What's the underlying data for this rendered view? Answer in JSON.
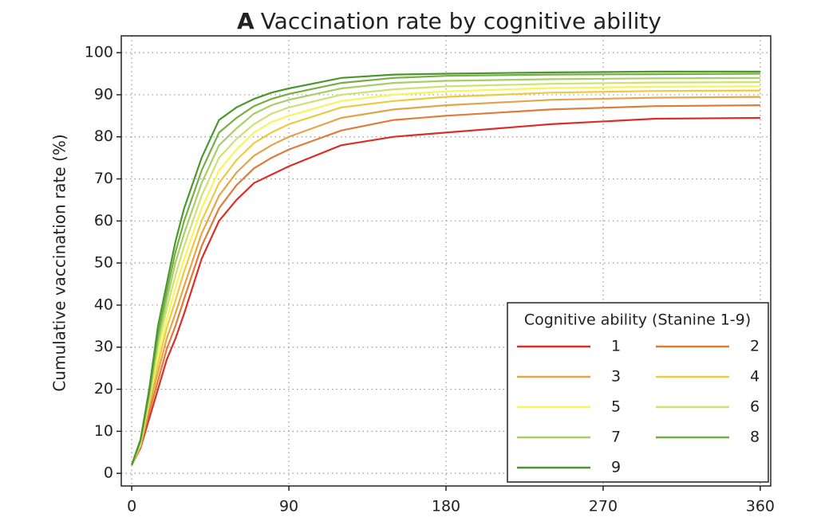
{
  "chart_data": {
    "type": "line",
    "panel_label": "A",
    "title": "Vaccination rate by cognitive ability",
    "y_label": "Cumulative vaccination rate (%)",
    "legend_title": "Cognitive ability (Stanine 1-9)",
    "legend": "bottom right",
    "grid": true,
    "x": [
      0,
      5,
      10,
      15,
      20,
      25,
      30,
      40,
      50,
      60,
      70,
      80,
      90,
      120,
      150,
      180,
      240,
      300,
      360
    ],
    "xlim": [
      -6,
      366
    ],
    "xticks": [
      0,
      90,
      180,
      270,
      360
    ],
    "ylim": [
      -3,
      104
    ],
    "yticks": [
      0,
      10,
      20,
      30,
      40,
      50,
      60,
      70,
      80,
      90,
      100
    ],
    "series": [
      {
        "name": "1",
        "color": "#d7302a",
        "values": [
          2,
          6,
          13,
          20,
          27,
          32,
          38,
          51,
          60,
          65,
          69,
          71,
          73,
          78,
          80,
          81,
          83,
          84.3,
          84.5
        ]
      },
      {
        "name": "2",
        "color": "#e07b39",
        "values": [
          2,
          6.3,
          14.5,
          22,
          29.5,
          35,
          41.5,
          54,
          63,
          68.5,
          72.5,
          75,
          77,
          81.5,
          84,
          85,
          86.5,
          87.3,
          87.5
        ]
      },
      {
        "name": "3",
        "color": "#e4a54a",
        "values": [
          2,
          6.5,
          16,
          24,
          32,
          38,
          44.5,
          57,
          66,
          71.5,
          75.5,
          78,
          80,
          84.5,
          86.5,
          87.5,
          88.8,
          89.3,
          89.5
        ]
      },
      {
        "name": "4",
        "color": "#efc940",
        "values": [
          2,
          6.8,
          17,
          26,
          34.5,
          41,
          48,
          60,
          69,
          74.5,
          78.5,
          81,
          83,
          87,
          88.5,
          89.5,
          90.5,
          90.9,
          91
        ]
      },
      {
        "name": "5",
        "color": "#f7f55a",
        "values": [
          2,
          7,
          17.5,
          28,
          36.5,
          44,
          51,
          63,
          72,
          77,
          81,
          83.5,
          85,
          88.5,
          90,
          90.8,
          91.6,
          91.9,
          92
        ]
      },
      {
        "name": "6",
        "color": "#cde272",
        "values": [
          2,
          7.3,
          18,
          30,
          39,
          47,
          54,
          66,
          75,
          79.5,
          83,
          85.5,
          87,
          90,
          91.3,
          92,
          92.6,
          92.9,
          93
        ]
      },
      {
        "name": "7",
        "color": "#a6cf66",
        "values": [
          2,
          7.5,
          18.5,
          31.5,
          41,
          50,
          57,
          69,
          78,
          82,
          85.5,
          87.5,
          88.8,
          91.5,
          92.8,
          93.3,
          93.7,
          93.9,
          94
        ]
      },
      {
        "name": "8",
        "color": "#78ad45",
        "values": [
          2,
          7.8,
          19,
          33,
          43,
          52.5,
          60,
          72,
          81,
          84.5,
          87.3,
          89,
          90.2,
          92.8,
          94,
          94.5,
          94.8,
          94.9,
          95
        ]
      },
      {
        "name": "9",
        "color": "#4a972e",
        "values": [
          2,
          8,
          20,
          35,
          45,
          55,
          63,
          75,
          84,
          87,
          89,
          90.5,
          91.5,
          94,
          94.8,
          95,
          95.3,
          95.5,
          95.5
        ]
      }
    ]
  }
}
